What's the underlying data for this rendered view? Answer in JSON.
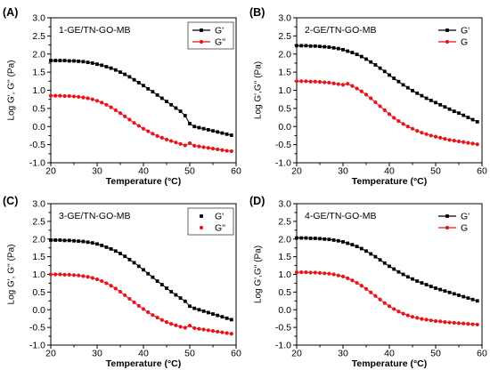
{
  "chart_data": [
    {
      "type": "line",
      "panel_label": "(A)",
      "title": "1-GE/TN-GO-MB",
      "xlabel": "Temperature (°C)",
      "ylabel": "Log G', G'' (Pa)",
      "xlim": [
        20,
        60
      ],
      "ylim": [
        -1.0,
        3.0
      ],
      "xticks": [
        "20",
        "30",
        "40",
        "50",
        "60"
      ],
      "yticks": [
        "-1.0",
        "-0.5",
        "0.0",
        "0.5",
        "1.0",
        "1.5",
        "2.0",
        "2.5",
        "3.0"
      ],
      "grid": false,
      "legend": "top-right",
      "x": [
        20,
        21,
        22,
        23,
        24,
        25,
        26,
        27,
        28,
        29,
        30,
        31,
        32,
        33,
        34,
        35,
        36,
        37,
        38,
        39,
        40,
        41,
        42,
        43,
        44,
        45,
        46,
        47,
        48,
        49,
        50,
        51,
        52,
        53,
        54,
        55,
        56,
        57,
        58,
        59
      ],
      "series": [
        {
          "name": "G'",
          "color": "#000000",
          "marker": "square",
          "values": [
            1.82,
            1.82,
            1.82,
            1.82,
            1.81,
            1.81,
            1.8,
            1.79,
            1.77,
            1.75,
            1.72,
            1.69,
            1.65,
            1.61,
            1.56,
            1.5,
            1.44,
            1.37,
            1.29,
            1.21,
            1.13,
            1.04,
            0.96,
            0.87,
            0.78,
            0.69,
            0.6,
            0.51,
            0.42,
            0.3,
            0.08,
            0.0,
            -0.03,
            -0.06,
            -0.09,
            -0.12,
            -0.15,
            -0.18,
            -0.21,
            -0.24
          ]
        },
        {
          "name": "G''",
          "color": "#e8131b",
          "marker": "circle",
          "values": [
            0.85,
            0.85,
            0.85,
            0.84,
            0.84,
            0.83,
            0.82,
            0.8,
            0.78,
            0.75,
            0.71,
            0.66,
            0.6,
            0.53,
            0.45,
            0.37,
            0.28,
            0.19,
            0.1,
            0.02,
            -0.06,
            -0.13,
            -0.2,
            -0.26,
            -0.31,
            -0.36,
            -0.4,
            -0.44,
            -0.48,
            -0.52,
            -0.46,
            -0.53,
            -0.55,
            -0.57,
            -0.59,
            -0.61,
            -0.63,
            -0.65,
            -0.67,
            -0.68
          ]
        }
      ]
    },
    {
      "type": "line",
      "panel_label": "(B)",
      "title": "2-GE/TN-GO-MB",
      "xlabel": "Temperature (°C)",
      "ylabel": "Log G',G'' (Pa)",
      "xlim": [
        20,
        60
      ],
      "ylim": [
        -1.0,
        3.0
      ],
      "xticks": [
        "20",
        "30",
        "40",
        "50",
        "60"
      ],
      "yticks": [
        "-1.0",
        "-0.5",
        "0.0",
        "0.5",
        "1.0",
        "1.5",
        "2.0",
        "2.5",
        "3.0"
      ],
      "grid": false,
      "legend": "top-right",
      "x": [
        20,
        21,
        22,
        23,
        24,
        25,
        26,
        27,
        28,
        29,
        30,
        31,
        32,
        33,
        34,
        35,
        36,
        37,
        38,
        39,
        40,
        41,
        42,
        43,
        44,
        45,
        46,
        47,
        48,
        49,
        50,
        51,
        52,
        53,
        54,
        55,
        56,
        57,
        58,
        59
      ],
      "series": [
        {
          "name": "G'",
          "color": "#000000",
          "marker": "square",
          "values": [
            2.23,
            2.23,
            2.23,
            2.22,
            2.22,
            2.21,
            2.2,
            2.19,
            2.17,
            2.15,
            2.12,
            2.08,
            2.04,
            1.99,
            1.93,
            1.86,
            1.78,
            1.7,
            1.61,
            1.52,
            1.42,
            1.33,
            1.24,
            1.15,
            1.07,
            0.99,
            0.92,
            0.85,
            0.78,
            0.72,
            0.66,
            0.6,
            0.54,
            0.48,
            0.42,
            0.37,
            0.31,
            0.25,
            0.19,
            0.13
          ]
        },
        {
          "name": "G",
          "color": "#e8131b",
          "marker": "circle",
          "values": [
            1.25,
            1.25,
            1.25,
            1.24,
            1.24,
            1.23,
            1.22,
            1.21,
            1.19,
            1.17,
            1.15,
            1.18,
            1.12,
            1.05,
            0.97,
            0.88,
            0.78,
            0.67,
            0.56,
            0.45,
            0.34,
            0.24,
            0.15,
            0.07,
            0.0,
            -0.06,
            -0.12,
            -0.17,
            -0.21,
            -0.25,
            -0.28,
            -0.31,
            -0.34,
            -0.37,
            -0.39,
            -0.41,
            -0.43,
            -0.45,
            -0.47,
            -0.49
          ]
        }
      ]
    },
    {
      "type": "line",
      "panel_label": "(C)",
      "title": "3-GE/TN-GO-MB",
      "xlabel": "Temperature (°C)",
      "ylabel": "Log G', G'' (Pa)",
      "xlim": [
        20,
        60
      ],
      "ylim": [
        -1.0,
        3.0
      ],
      "xticks": [
        "20",
        "30",
        "40",
        "50",
        "60"
      ],
      "yticks": [
        "-1.0",
        "-0.5",
        "0.0",
        "0.5",
        "1.0",
        "1.5",
        "2.0",
        "2.5",
        "3.0"
      ],
      "grid": false,
      "legend": "top-right",
      "x": [
        20,
        21,
        22,
        23,
        24,
        25,
        26,
        27,
        28,
        29,
        30,
        31,
        32,
        33,
        34,
        35,
        36,
        37,
        38,
        39,
        40,
        41,
        42,
        43,
        44,
        45,
        46,
        47,
        48,
        49,
        50,
        51,
        52,
        53,
        54,
        55,
        56,
        57,
        58,
        59
      ],
      "series": [
        {
          "name": "G'",
          "color": "#000000",
          "marker": "square",
          "values": [
            1.97,
            1.97,
            1.97,
            1.96,
            1.96,
            1.95,
            1.94,
            1.93,
            1.91,
            1.89,
            1.86,
            1.82,
            1.77,
            1.72,
            1.66,
            1.59,
            1.51,
            1.42,
            1.33,
            1.23,
            1.13,
            1.02,
            0.92,
            0.81,
            0.71,
            0.61,
            0.51,
            0.42,
            0.33,
            0.24,
            0.1,
            0.04,
            0.0,
            -0.04,
            -0.08,
            -0.12,
            -0.16,
            -0.2,
            -0.24,
            -0.28
          ]
        },
        {
          "name": "G''",
          "color": "#e8131b",
          "marker": "circle",
          "values": [
            1.0,
            1.0,
            1.0,
            0.99,
            0.99,
            0.98,
            0.97,
            0.95,
            0.93,
            0.9,
            0.86,
            0.81,
            0.75,
            0.68,
            0.6,
            0.51,
            0.41,
            0.31,
            0.21,
            0.11,
            0.02,
            -0.07,
            -0.15,
            -0.22,
            -0.29,
            -0.35,
            -0.4,
            -0.44,
            -0.48,
            -0.51,
            -0.45,
            -0.52,
            -0.54,
            -0.56,
            -0.58,
            -0.6,
            -0.62,
            -0.64,
            -0.66,
            -0.68
          ]
        }
      ]
    },
    {
      "type": "line",
      "panel_label": "(D)",
      "title": "4-GE/TN-GO-MB",
      "xlabel": "Temperature (°C)",
      "ylabel": "Log G',G'' (Pa)",
      "xlim": [
        20,
        60
      ],
      "ylim": [
        -1.0,
        3.0
      ],
      "xticks": [
        "20",
        "30",
        "40",
        "50",
        "60"
      ],
      "yticks": [
        "-1.0",
        "-0.5",
        "0.0",
        "0.5",
        "1.0",
        "1.5",
        "2.0",
        "2.5",
        "3.0"
      ],
      "grid": false,
      "legend": "top-right",
      "x": [
        20,
        21,
        22,
        23,
        24,
        25,
        26,
        27,
        28,
        29,
        30,
        31,
        32,
        33,
        34,
        35,
        36,
        37,
        38,
        39,
        40,
        41,
        42,
        43,
        44,
        45,
        46,
        47,
        48,
        49,
        50,
        51,
        52,
        53,
        54,
        55,
        56,
        57,
        58,
        59
      ],
      "series": [
        {
          "name": "G'",
          "color": "#000000",
          "marker": "square",
          "values": [
            2.03,
            2.03,
            2.03,
            2.02,
            2.02,
            2.01,
            2.0,
            1.99,
            1.97,
            1.95,
            1.92,
            1.88,
            1.84,
            1.79,
            1.73,
            1.66,
            1.58,
            1.5,
            1.41,
            1.32,
            1.23,
            1.15,
            1.07,
            1.0,
            0.93,
            0.87,
            0.81,
            0.76,
            0.71,
            0.66,
            0.61,
            0.57,
            0.53,
            0.49,
            0.45,
            0.41,
            0.37,
            0.33,
            0.29,
            0.25
          ]
        },
        {
          "name": "G",
          "color": "#e8131b",
          "marker": "circle",
          "values": [
            1.06,
            1.06,
            1.06,
            1.05,
            1.05,
            1.04,
            1.03,
            1.02,
            1.0,
            0.97,
            0.94,
            0.89,
            0.83,
            0.76,
            0.68,
            0.59,
            0.49,
            0.39,
            0.29,
            0.19,
            0.1,
            0.02,
            -0.05,
            -0.11,
            -0.16,
            -0.2,
            -0.23,
            -0.26,
            -0.28,
            -0.3,
            -0.32,
            -0.33,
            -0.35,
            -0.36,
            -0.37,
            -0.38,
            -0.39,
            -0.4,
            -0.41,
            -0.42
          ]
        }
      ]
    }
  ]
}
